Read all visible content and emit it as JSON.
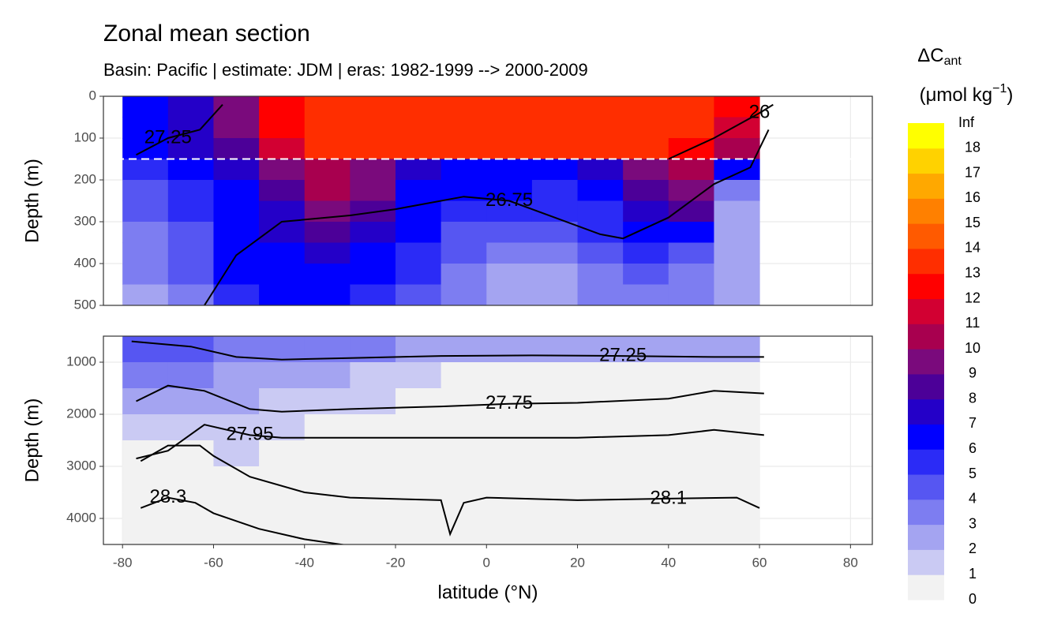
{
  "chart_data": {
    "type": "contour",
    "title": "Zonal mean section",
    "subtitle": "Basin: Pacific | estimate: JDM  | eras: 1982-1999 --> 2000-2009",
    "x_label": "latitude (°N)",
    "y_label": "Depth (m)",
    "x": [
      -75,
      -65,
      -55,
      -45,
      -35,
      -25,
      -15,
      -5,
      5,
      15,
      25,
      35,
      45,
      55
    ],
    "xlim": [
      -84.2,
      84.8
    ],
    "xticks": [
      -80,
      -60,
      -40,
      -20,
      0,
      20,
      40,
      60,
      80
    ],
    "grid": true,
    "panels": [
      {
        "ylim": [
          0,
          500
        ],
        "yticks": [
          0,
          100,
          200,
          300,
          400,
          500
        ],
        "hline": 150,
        "depth": [
          25,
          75,
          125,
          175,
          225,
          275,
          325,
          375,
          425,
          475
        ],
        "z": [
          [
            6,
            7,
            9,
            12,
            13,
            13,
            13,
            13,
            13,
            13,
            13,
            13,
            13,
            12
          ],
          [
            6,
            7,
            9,
            12,
            13,
            13,
            13,
            13,
            13,
            13,
            13,
            13,
            13,
            11
          ],
          [
            6,
            7,
            8,
            11,
            13,
            13,
            13,
            13,
            13,
            13,
            13,
            13,
            12,
            10
          ],
          [
            5,
            6,
            7,
            9,
            10,
            9,
            7,
            6,
            6,
            6,
            7,
            9,
            10,
            6
          ],
          [
            4,
            5,
            6,
            8,
            10,
            9,
            6,
            6,
            6,
            5,
            6,
            8,
            9,
            3
          ],
          [
            4,
            5,
            6,
            7,
            9,
            8,
            6,
            5,
            5,
            5,
            5,
            7,
            8,
            2
          ],
          [
            3,
            4,
            6,
            7,
            8,
            7,
            6,
            4,
            4,
            4,
            5,
            6,
            6,
            2
          ],
          [
            3,
            4,
            6,
            6,
            7,
            6,
            5,
            4,
            3,
            3,
            4,
            5,
            4,
            2
          ],
          [
            3,
            4,
            6,
            6,
            6,
            6,
            5,
            3,
            2,
            2,
            3,
            4,
            3,
            2
          ],
          [
            2,
            3,
            5,
            6,
            6,
            5,
            4,
            3,
            2,
            2,
            3,
            3,
            3,
            2
          ]
        ],
        "isolines": [
          {
            "label": "27.25",
            "lat": [
              -77,
              -70,
              -63,
              -58
            ],
            "depth": [
              140,
              100,
              80,
              20
            ]
          },
          {
            "label": "26",
            "lat": [
              40,
              50,
              55,
              60,
              63
            ],
            "depth": [
              150,
              100,
              70,
              40,
              20
            ]
          },
          {
            "label": "26.75",
            "lat": [
              -62,
              -55,
              -45,
              -30,
              -20,
              -5,
              5,
              15,
              25,
              30,
              40,
              50,
              58,
              62
            ],
            "depth": [
              500,
              380,
              300,
              285,
              270,
              240,
              250,
              290,
              330,
              340,
              290,
              210,
              170,
              80
            ]
          }
        ]
      },
      {
        "ylim": [
          500,
          4500
        ],
        "yticks": [
          1000,
          2000,
          3000,
          4000
        ],
        "depth": [
          750,
          1250,
          1750,
          2250,
          2750,
          3250,
          3750,
          4250
        ],
        "z": [
          [
            4,
            4,
            3,
            3,
            3,
            3,
            2,
            2,
            2,
            2,
            2,
            2,
            2,
            2
          ],
          [
            3,
            3,
            2,
            2,
            2,
            1,
            1,
            0,
            0,
            0,
            0,
            0,
            0,
            0
          ],
          [
            2,
            2,
            2,
            1,
            1,
            1,
            0,
            0,
            0,
            0,
            0,
            0,
            0,
            0
          ],
          [
            1,
            1,
            1,
            1,
            0,
            0,
            0,
            0,
            0,
            0,
            0,
            0,
            0,
            0
          ],
          [
            0,
            0,
            1,
            0,
            0,
            0,
            0,
            0,
            0,
            0,
            0,
            0,
            0,
            0
          ],
          [
            0,
            0,
            0,
            0,
            0,
            0,
            0,
            0,
            0,
            0,
            0,
            0,
            0,
            0
          ],
          [
            0,
            0,
            0,
            0,
            0,
            0,
            0,
            0,
            0,
            0,
            0,
            0,
            0,
            0
          ],
          [
            0,
            0,
            0,
            0,
            0,
            0,
            0,
            0,
            0,
            0,
            0,
            0,
            0,
            0
          ]
        ],
        "isolines": [
          {
            "label": "27.25",
            "lat": [
              -78,
              -65,
              -55,
              -45,
              -30,
              -10,
              10,
              30,
              50,
              61
            ],
            "depth": [
              600,
              700,
              900,
              950,
              920,
              880,
              870,
              880,
              900,
              900
            ]
          },
          {
            "label": "27.75",
            "lat": [
              -77,
              -70,
              -62,
              -52,
              -45,
              -30,
              -10,
              5,
              20,
              40,
              50,
              61
            ],
            "depth": [
              1750,
              1450,
              1550,
              1900,
              1950,
              1900,
              1850,
              1800,
              1780,
              1700,
              1550,
              1600
            ]
          },
          {
            "label": "27.95",
            "lat": [
              -77,
              -70,
              -62,
              -52,
              -45,
              -30,
              -10,
              0,
              20,
              40,
              50,
              61
            ],
            "depth": [
              2850,
              2700,
              2200,
              2400,
              2450,
              2450,
              2450,
              2450,
              2450,
              2400,
              2300,
              2400
            ]
          },
          {
            "label": "28.3",
            "lat": [
              -76,
              -70,
              -64,
              -60,
              -50,
              -40,
              -28
            ],
            "depth": [
              3800,
              3600,
              3700,
              3900,
              4200,
              4400,
              4550
            ]
          },
          {
            "label": "28.1",
            "lat": [
              -76,
              -70,
              -63,
              -60,
              -52,
              -40,
              -30,
              -10,
              -8,
              -5,
              0,
              20,
              40,
              55,
              60
            ],
            "depth": [
              2900,
              2600,
              2600,
              2800,
              3200,
              3500,
              3600,
              3650,
              4300,
              3700,
              3600,
              3650,
              3620,
              3600,
              3800
            ]
          }
        ]
      }
    ],
    "legend": {
      "title": "ΔC",
      "title_sub": "ant",
      "unit": "(μmol kg",
      "unit_sup": "−1",
      "unit_close": ")",
      "breaks": [
        0,
        1,
        2,
        3,
        4,
        5,
        6,
        7,
        8,
        9,
        10,
        11,
        12,
        13,
        14,
        15,
        16,
        17,
        18
      ],
      "top_label": "Inf",
      "colors": [
        "#f2f2f2",
        "#cacaf3",
        "#a4a4f1",
        "#7d7df1",
        "#5656f2",
        "#2b2bf6",
        "#0000ff",
        "#2400c8",
        "#4c0098",
        "#7a0a7c",
        "#a8004f",
        "#d20032",
        "#ff0000",
        "#ff2e00",
        "#ff5a00",
        "#ff8000",
        "#ffa800",
        "#ffd200",
        "#ffff00"
      ]
    }
  }
}
